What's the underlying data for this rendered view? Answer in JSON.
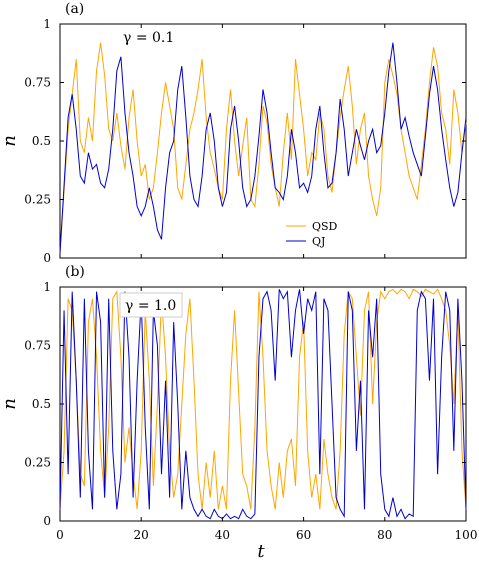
{
  "chart_data": [
    {
      "type": "line",
      "panel": "(a)",
      "annotation": "γ = 0.1",
      "xlabel": "",
      "ylabel": "n",
      "xlim": [
        0,
        100
      ],
      "ylim": [
        0,
        1
      ],
      "y_ticks": [
        "0",
        "0.25",
        "0.5",
        "0.75",
        "1"
      ],
      "grid": false,
      "legend_position": "lower-center",
      "series": [
        {
          "name": "QSD",
          "color": "#FFA500",
          "x": [
            0,
            2,
            3,
            4,
            5,
            6,
            7,
            8,
            9,
            10,
            11,
            12,
            13,
            14,
            15,
            16,
            17,
            18,
            19,
            20,
            21,
            22,
            23,
            24,
            25,
            26,
            27,
            28,
            29,
            30,
            31,
            32,
            33,
            34,
            35,
            36,
            37,
            38,
            39,
            40,
            41,
            42,
            43,
            44,
            45,
            46,
            47,
            48,
            49,
            50,
            51,
            52,
            53,
            54,
            55,
            56,
            57,
            58,
            59,
            60,
            61,
            62,
            63,
            64,
            65,
            66,
            67,
            68,
            69,
            70,
            71,
            72,
            73,
            74,
            75,
            76,
            77,
            78,
            79,
            80,
            81,
            82,
            83,
            84,
            85,
            86,
            87,
            88,
            89,
            90,
            91,
            92,
            93,
            94,
            95,
            96,
            97,
            98,
            99,
            100
          ],
          "values": [
            0.02,
            0.55,
            0.7,
            0.85,
            0.5,
            0.45,
            0.6,
            0.5,
            0.8,
            0.92,
            0.78,
            0.55,
            0.5,
            0.62,
            0.48,
            0.38,
            0.6,
            0.72,
            0.5,
            0.35,
            0.4,
            0.25,
            0.3,
            0.45,
            0.62,
            0.75,
            0.65,
            0.55,
            0.3,
            0.25,
            0.4,
            0.55,
            0.62,
            0.72,
            0.85,
            0.6,
            0.45,
            0.38,
            0.3,
            0.25,
            0.55,
            0.72,
            0.5,
            0.35,
            0.48,
            0.6,
            0.25,
            0.22,
            0.4,
            0.65,
            0.58,
            0.4,
            0.3,
            0.22,
            0.45,
            0.62,
            0.42,
            0.85,
            0.7,
            0.55,
            0.35,
            0.45,
            0.42,
            0.62,
            0.55,
            0.35,
            0.28,
            0.45,
            0.6,
            0.72,
            0.82,
            0.65,
            0.4,
            0.55,
            0.62,
            0.35,
            0.25,
            0.18,
            0.3,
            0.75,
            0.85,
            0.78,
            0.7,
            0.55,
            0.45,
            0.35,
            0.3,
            0.25,
            0.4,
            0.55,
            0.75,
            0.9,
            0.82,
            0.62,
            0.55,
            0.4,
            0.72,
            0.62,
            0.45,
            0.58
          ]
        },
        {
          "name": "QJ",
          "color": "#0000CD",
          "x": [
            0,
            2,
            3,
            4,
            5,
            6,
            7,
            8,
            9,
            10,
            11,
            12,
            13,
            14,
            15,
            16,
            17,
            18,
            19,
            20,
            21,
            22,
            23,
            24,
            25,
            26,
            27,
            28,
            29,
            30,
            31,
            32,
            33,
            34,
            35,
            36,
            37,
            38,
            39,
            40,
            41,
            42,
            43,
            44,
            45,
            46,
            47,
            48,
            49,
            50,
            51,
            52,
            53,
            54,
            55,
            56,
            57,
            58,
            59,
            60,
            61,
            62,
            63,
            64,
            65,
            66,
            67,
            68,
            69,
            70,
            71,
            72,
            73,
            74,
            75,
            76,
            77,
            78,
            79,
            80,
            81,
            82,
            83,
            84,
            85,
            86,
            87,
            88,
            89,
            90,
            91,
            92,
            93,
            94,
            95,
            96,
            97,
            98,
            99,
            100
          ],
          "values": [
            0.02,
            0.6,
            0.7,
            0.55,
            0.35,
            0.32,
            0.45,
            0.38,
            0.4,
            0.32,
            0.3,
            0.38,
            0.55,
            0.8,
            0.86,
            0.62,
            0.45,
            0.35,
            0.22,
            0.18,
            0.22,
            0.3,
            0.22,
            0.12,
            0.08,
            0.3,
            0.45,
            0.5,
            0.72,
            0.82,
            0.6,
            0.35,
            0.25,
            0.22,
            0.35,
            0.55,
            0.62,
            0.5,
            0.3,
            0.22,
            0.28,
            0.55,
            0.65,
            0.5,
            0.3,
            0.22,
            0.25,
            0.35,
            0.52,
            0.72,
            0.62,
            0.45,
            0.3,
            0.28,
            0.25,
            0.35,
            0.55,
            0.45,
            0.3,
            0.32,
            0.28,
            0.35,
            0.55,
            0.65,
            0.45,
            0.3,
            0.32,
            0.45,
            0.68,
            0.55,
            0.35,
            0.45,
            0.55,
            0.48,
            0.42,
            0.5,
            0.55,
            0.45,
            0.48,
            0.62,
            0.8,
            0.92,
            0.75,
            0.55,
            0.6,
            0.52,
            0.45,
            0.4,
            0.35,
            0.52,
            0.7,
            0.82,
            0.72,
            0.55,
            0.42,
            0.3,
            0.22,
            0.28,
            0.45,
            0.6
          ]
        }
      ]
    },
    {
      "type": "line",
      "panel": "(b)",
      "annotation": "γ = 1.0",
      "xlabel": "t",
      "ylabel": "n",
      "xlim": [
        0,
        100
      ],
      "ylim": [
        0,
        1
      ],
      "x_ticks": [
        "0",
        "20",
        "40",
        "60",
        "80",
        "100"
      ],
      "y_ticks": [
        "0",
        "0.25",
        "0.5",
        "0.75",
        "1"
      ],
      "grid": false,
      "series": [
        {
          "name": "QSD",
          "color": "#FFA500",
          "x": [
            0,
            1,
            2,
            3,
            4,
            5,
            6,
            7,
            8,
            9,
            10,
            11,
            12,
            13,
            14,
            15,
            16,
            17,
            18,
            19,
            20,
            21,
            22,
            23,
            24,
            25,
            26,
            27,
            28,
            29,
            30,
            31,
            32,
            33,
            34,
            35,
            36,
            37,
            38,
            39,
            40,
            41,
            42,
            43,
            44,
            45,
            46,
            47,
            48,
            49,
            50,
            51,
            52,
            53,
            54,
            55,
            56,
            57,
            58,
            59,
            60,
            61,
            62,
            63,
            64,
            65,
            66,
            67,
            68,
            69,
            70,
            71,
            72,
            73,
            74,
            75,
            76,
            77,
            78,
            79,
            80,
            81,
            82,
            83,
            84,
            85,
            86,
            87,
            88,
            89,
            90,
            91,
            92,
            93,
            94,
            95,
            96,
            97,
            98,
            99,
            100
          ],
          "values": [
            0.05,
            0.3,
            0.95,
            0.9,
            0.6,
            0.2,
            0.15,
            0.85,
            0.95,
            0.7,
            0.3,
            0.1,
            0.4,
            0.95,
            0.98,
            0.7,
            0.25,
            0.4,
            0.2,
            0.05,
            0.3,
            0.9,
            0.6,
            0.15,
            0.5,
            0.95,
            0.7,
            0.3,
            0.1,
            0.2,
            0.5,
            0.8,
            0.95,
            0.6,
            0.2,
            0.05,
            0.25,
            0.1,
            0.3,
            0.05,
            0.15,
            0.05,
            0.6,
            0.9,
            0.55,
            0.2,
            0.15,
            0.05,
            0.4,
            0.98,
            0.7,
            0.3,
            0.15,
            0.05,
            0.25,
            0.1,
            0.3,
            0.35,
            0.15,
            0.7,
            0.85,
            0.3,
            0.1,
            0.2,
            0.05,
            0.35,
            0.2,
            0.1,
            0.05,
            0.3,
            0.8,
            0.98,
            0.95,
            0.7,
            0.45,
            0.9,
            0.98,
            0.5,
            0.85,
            0.98,
            0.95,
            0.98,
            0.99,
            0.97,
            0.99,
            0.98,
            0.95,
            0.99,
            0.98,
            0.96,
            0.99,
            0.98,
            0.97,
            0.99,
            0.95,
            0.9,
            0.75,
            0.5,
            0.9,
            0.3,
            0.05
          ]
        },
        {
          "name": "QJ",
          "color": "#0000CD",
          "x": [
            0,
            1,
            2,
            3,
            4,
            5,
            6,
            7,
            8,
            9,
            10,
            11,
            12,
            13,
            14,
            15,
            16,
            17,
            18,
            19,
            20,
            21,
            22,
            23,
            24,
            25,
            26,
            27,
            28,
            29,
            30,
            31,
            32,
            33,
            34,
            35,
            36,
            37,
            38,
            39,
            40,
            41,
            42,
            43,
            44,
            45,
            46,
            47,
            48,
            49,
            50,
            51,
            52,
            53,
            54,
            55,
            56,
            57,
            58,
            59,
            60,
            61,
            62,
            63,
            64,
            65,
            66,
            67,
            68,
            69,
            70,
            71,
            72,
            73,
            74,
            75,
            76,
            77,
            78,
            79,
            80,
            81,
            82,
            83,
            84,
            85,
            86,
            87,
            88,
            89,
            90,
            91,
            92,
            93,
            94,
            95,
            96,
            97,
            98,
            99,
            100
          ],
          "values": [
            0.05,
            0.9,
            0.2,
            0.98,
            0.6,
            0.1,
            0.95,
            0.3,
            0.05,
            0.98,
            0.85,
            0.1,
            0.95,
            0.3,
            0.05,
            0.2,
            0.98,
            0.7,
            0.1,
            0.6,
            0.95,
            0.4,
            0.05,
            0.9,
            0.75,
            0.2,
            0.6,
            0.1,
            0.85,
            0.5,
            0.05,
            0.3,
            0.1,
            0.05,
            0.02,
            0.05,
            0.02,
            0.01,
            0.05,
            0.02,
            0.01,
            0.03,
            0.01,
            0.02,
            0.01,
            0.05,
            0.02,
            0.01,
            0.03,
            0.7,
            0.95,
            0.98,
            0.9,
            0.6,
            0.99,
            0.95,
            0.98,
            0.7,
            0.9,
            0.99,
            0.8,
            0.95,
            0.9,
            0.98,
            0.2,
            0.95,
            0.9,
            0.5,
            0.1,
            0.05,
            0.02,
            0.98,
            0.9,
            0.3,
            0.6,
            0.05,
            0.9,
            0.7,
            0.95,
            0.2,
            0.05,
            0.02,
            0.1,
            0.02,
            0.05,
            0.01,
            0.03,
            0.02,
            0.9,
            0.98,
            0.95,
            0.6,
            0.95,
            0.2,
            0.7,
            0.98,
            0.9,
            0.3,
            0.95,
            0.6,
            0.05
          ]
        }
      ]
    }
  ]
}
